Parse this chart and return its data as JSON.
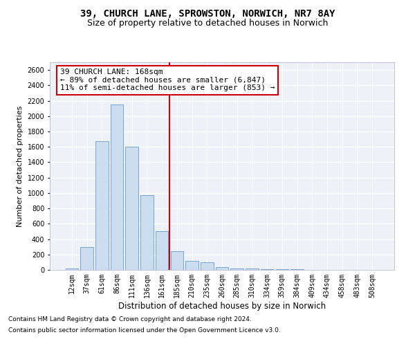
{
  "title": "39, CHURCH LANE, SPROWSTON, NORWICH, NR7 8AY",
  "subtitle": "Size of property relative to detached houses in Norwich",
  "xlabel": "Distribution of detached houses by size in Norwich",
  "ylabel": "Number of detached properties",
  "categories": [
    "12sqm",
    "37sqm",
    "61sqm",
    "86sqm",
    "111sqm",
    "136sqm",
    "161sqm",
    "185sqm",
    "210sqm",
    "235sqm",
    "260sqm",
    "285sqm",
    "310sqm",
    "334sqm",
    "359sqm",
    "384sqm",
    "409sqm",
    "434sqm",
    "458sqm",
    "483sqm",
    "508sqm"
  ],
  "values": [
    20,
    300,
    1670,
    2150,
    1600,
    970,
    500,
    245,
    120,
    100,
    35,
    20,
    20,
    10,
    5,
    5,
    2,
    2,
    0,
    2,
    2
  ],
  "bar_color": "#ccddf0",
  "bar_edge_color": "#6699cc",
  "red_line_x": 6.5,
  "red_line_color": "#cc0000",
  "annotation_line1": "39 CHURCH LANE: 168sqm",
  "annotation_line2": "← 89% of detached houses are smaller (6,847)",
  "annotation_line3": "11% of semi-detached houses are larger (853) →",
  "annotation_box_color": "#ffffff",
  "annotation_box_edge_color": "#cc0000",
  "ylim": [
    0,
    2700
  ],
  "background_color": "#eef2f8",
  "grid_color": "#ffffff",
  "footer_line1": "Contains HM Land Registry data © Crown copyright and database right 2024.",
  "footer_line2": "Contains public sector information licensed under the Open Government Licence v3.0.",
  "title_fontsize": 10,
  "subtitle_fontsize": 9,
  "ylabel_fontsize": 8,
  "xlabel_fontsize": 8.5,
  "tick_fontsize": 7,
  "annotation_fontsize": 8,
  "footer_fontsize": 6.5
}
